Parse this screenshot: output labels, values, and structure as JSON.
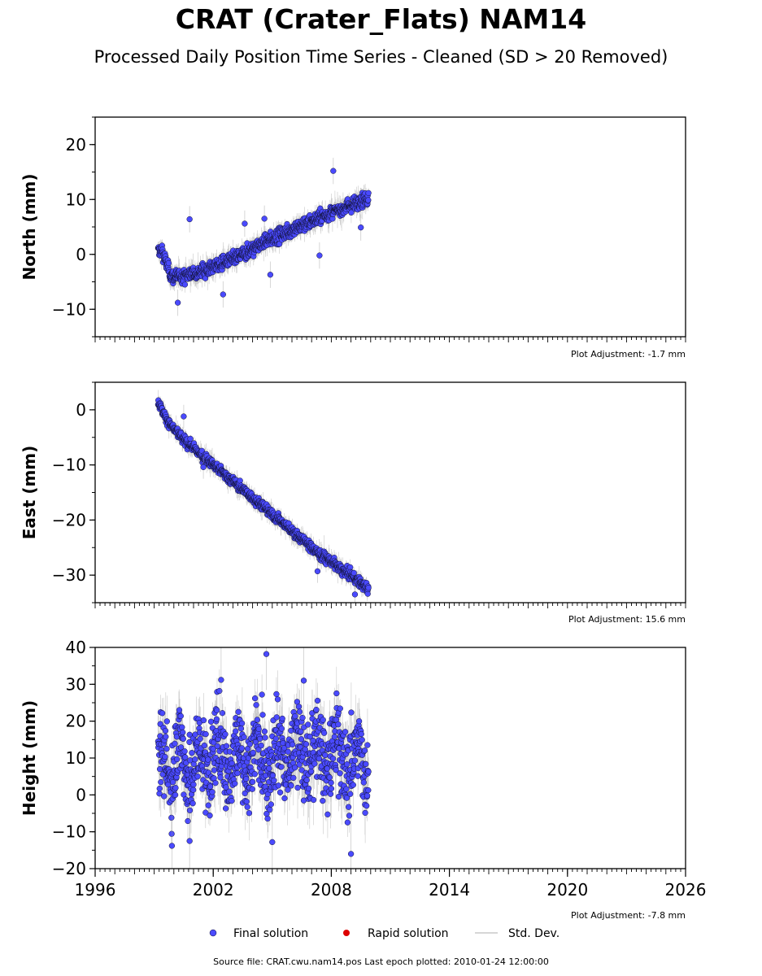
{
  "title": "CRAT (Crater_Flats) NAM14",
  "subtitle": "Processed Daily Position Time Series - Cleaned (SD > 20 Removed)",
  "source_line": "Source file: CRAT.cwu.nam14.pos  Last epoch plotted: 2010-01-24 12:00:00",
  "legend": {
    "final": "Final solution",
    "rapid": "Rapid solution",
    "std": "Std. Dev."
  },
  "colors": {
    "final_fill": "#4a4aff",
    "final_edge": "#111133",
    "rapid": "#dd0000",
    "std": "#9a9a9a"
  },
  "chart_data": [
    {
      "type": "scatter",
      "ylabel": "North (mm)",
      "adjustment": "Plot Adjustment: -1.7 mm",
      "xlim": [
        1996,
        2026
      ],
      "ylim": [
        -15,
        25
      ],
      "yticks": [
        "−10",
        "0",
        "10",
        "20"
      ],
      "ytick_values": [
        -10,
        0,
        10,
        20
      ],
      "series": [
        {
          "name": "Final solution",
          "x": [
            1999.2,
            1999.4,
            1999.6,
            1999.8,
            2000.0,
            2000.5,
            2001.0,
            2001.5,
            2002.0,
            2002.5,
            2003.0,
            2003.5,
            2004.0,
            2004.5,
            2005.0,
            2005.5,
            2006.0,
            2006.5,
            2007.0,
            2007.5,
            2008.0,
            2008.5,
            2009.0,
            2009.5,
            2009.9
          ],
          "y": [
            0.5,
            0.8,
            -1.5,
            -3.5,
            -4.2,
            -3.9,
            -3.4,
            -2.9,
            -2.3,
            -1.6,
            -0.9,
            0.0,
            1.0,
            2.0,
            2.9,
            3.7,
            4.5,
            5.3,
            6.1,
            6.8,
            7.5,
            8.3,
            9.0,
            9.8,
            10.3
          ],
          "outliers_x": [
            2000.2,
            2000.8,
            2002.5,
            2003.6,
            2004.6,
            2004.9,
            2007.4,
            2008.1,
            2009.5
          ],
          "outliers_y": [
            -8.8,
            6.4,
            -7.3,
            5.6,
            6.5,
            -3.7,
            -0.2,
            15.2,
            4.9
          ]
        }
      ]
    },
    {
      "type": "scatter",
      "ylabel": "East (mm)",
      "adjustment": "Plot Adjustment: 15.6 mm",
      "xlim": [
        1996,
        2026
      ],
      "ylim": [
        -35,
        5
      ],
      "yticks": [
        "−30",
        "−20",
        "−10",
        "0"
      ],
      "ytick_values": [
        -30,
        -20,
        -10,
        0
      ],
      "series": [
        {
          "name": "Final solution",
          "x": [
            1999.2,
            1999.5,
            2000.0,
            2000.5,
            2001.0,
            2001.5,
            2002.0,
            2002.5,
            2003.0,
            2003.5,
            2004.0,
            2004.5,
            2005.0,
            2005.5,
            2006.0,
            2006.5,
            2007.0,
            2007.5,
            2008.0,
            2008.5,
            2009.0,
            2009.5,
            2009.9
          ],
          "y": [
            1.5,
            -1.0,
            -3.5,
            -5.5,
            -7.0,
            -8.5,
            -10.0,
            -11.5,
            -13.0,
            -14.5,
            -16.0,
            -17.5,
            -19.0,
            -20.5,
            -22.0,
            -23.5,
            -25.0,
            -26.5,
            -27.5,
            -29.0,
            -30.0,
            -31.5,
            -32.5
          ],
          "outliers_x": [
            2000.5,
            2001.5,
            2007.3,
            2009.2
          ],
          "outliers_y": [
            -1.2,
            -10.4,
            -29.3,
            -33.5
          ]
        }
      ]
    },
    {
      "type": "scatter",
      "ylabel": "Height (mm)",
      "adjustment": "Plot Adjustment: -7.8 mm",
      "xlim": [
        1996,
        2026
      ],
      "ylim": [
        -20,
        40
      ],
      "yticks": [
        "−20",
        "−10",
        "0",
        "10",
        "20",
        "30",
        "40"
      ],
      "ytick_values": [
        -20,
        -10,
        0,
        10,
        20,
        30,
        40
      ],
      "xticks": [
        "1996",
        "2002",
        "2008",
        "2014",
        "2020",
        "2026"
      ],
      "xtick_values": [
        1996,
        2002,
        2008,
        2014,
        2020,
        2026
      ],
      "series": [
        {
          "name": "Final solution",
          "x": [
            1999.2,
            1999.5,
            2000.0,
            2000.5,
            2001.0,
            2001.5,
            2002.0,
            2002.5,
            2003.0,
            2003.5,
            2004.0,
            2004.5,
            2005.0,
            2005.5,
            2006.0,
            2006.5,
            2007.0,
            2007.5,
            2008.0,
            2008.5,
            2009.0,
            2009.5,
            2009.9
          ],
          "y": [
            8,
            10,
            7,
            11,
            6,
            10,
            9,
            12,
            8,
            11,
            10,
            13,
            7,
            12,
            10,
            13,
            9,
            12,
            10,
            11,
            9,
            10,
            10
          ],
          "outliers_x": [
            2004.7,
            2002.4,
            2006.6,
            2009.0,
            2000.8,
            2005.0,
            1999.9
          ],
          "outliers_y": [
            38.2,
            31.2,
            31.0,
            -16.0,
            -12.5,
            -12.8,
            -13.8
          ]
        }
      ]
    }
  ]
}
